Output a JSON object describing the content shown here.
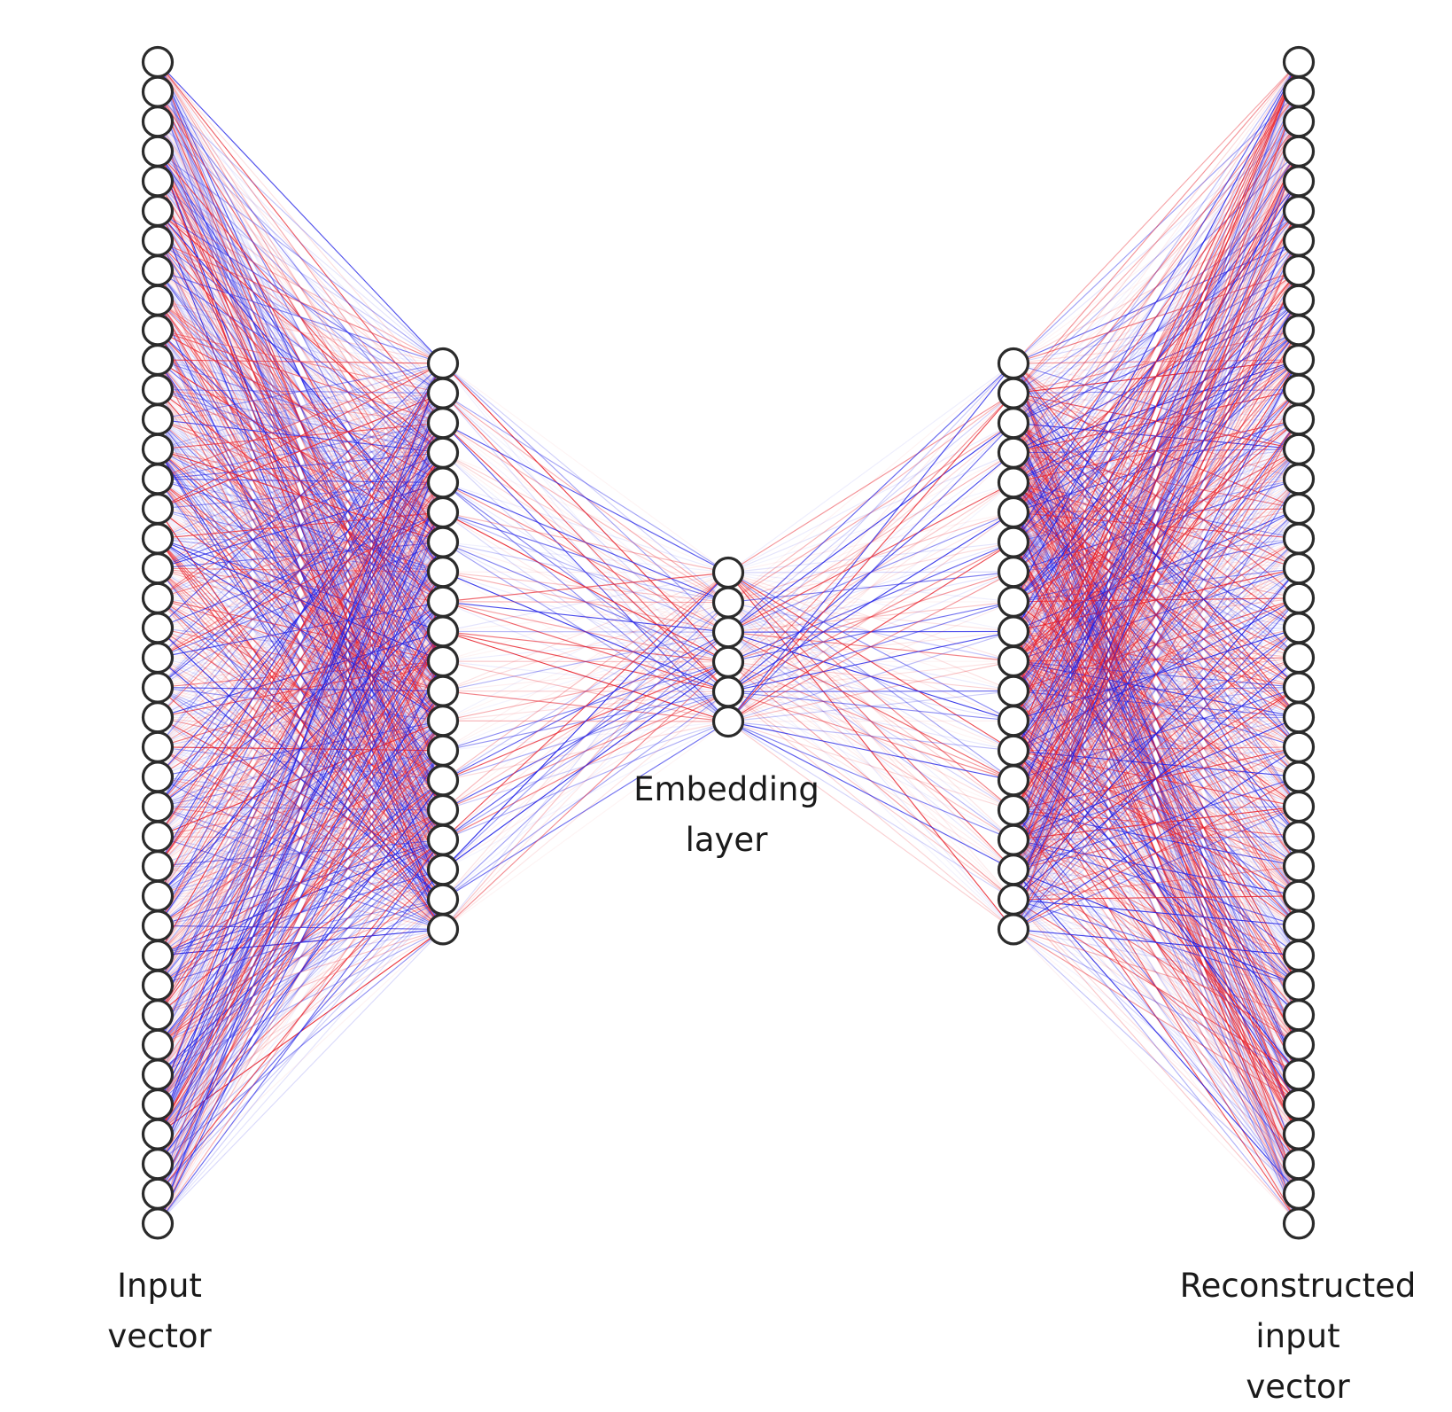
{
  "diagram": {
    "type": "autoencoder-network",
    "layers": [
      {
        "id": "input",
        "node_count": 40,
        "label": "Input\nvector"
      },
      {
        "id": "encoder-hidden",
        "node_count": 20,
        "label": ""
      },
      {
        "id": "embedding",
        "node_count": 6,
        "label": "Embedding\nlayer"
      },
      {
        "id": "decoder-hidden",
        "node_count": 20,
        "label": ""
      },
      {
        "id": "output",
        "node_count": 40,
        "label": "Reconstructed\ninput\nvector"
      }
    ],
    "connections": "fully-connected between adjacent layers",
    "colors": {
      "positive_weight": "#e8202a",
      "negative_weight": "#1c1ce6",
      "node_fill": "#ffffff",
      "node_stroke": "#2b2b2b"
    }
  }
}
